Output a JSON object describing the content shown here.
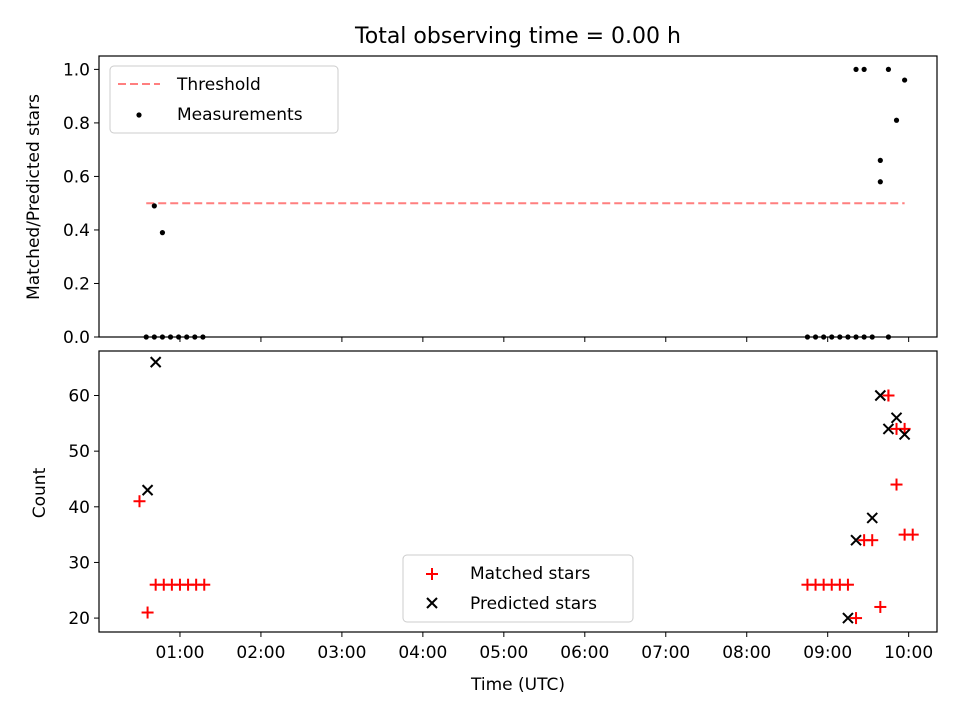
{
  "figure": {
    "title": "Total observing time = 0.00 h"
  },
  "chart_data": [
    {
      "type": "scatter",
      "ylabel": "Matched/Predicted stars",
      "ylim": [
        0,
        1.05
      ],
      "yticks": [
        "0.0",
        "0.2",
        "0.4",
        "0.6",
        "0.8",
        "1.0"
      ],
      "legend_position": "upper-left",
      "threshold": {
        "name": "Threshold",
        "value": 0.5,
        "x_range": [
          "00:35",
          "09:57"
        ],
        "color": "#ff7f7f"
      },
      "series": [
        {
          "name": "Measurements",
          "color": "#000000",
          "x": [
            "00:35",
            "00:41",
            "00:47",
            "00:53",
            "00:59",
            "01:05",
            "01:11",
            "01:17",
            "00:41",
            "00:47",
            "08:45",
            "08:51",
            "08:57",
            "09:03",
            "09:09",
            "09:15",
            "09:21",
            "09:21",
            "09:27",
            "09:27",
            "09:33",
            "09:39",
            "09:45",
            "09:45",
            "09:51",
            "09:57",
            "09:39"
          ],
          "y": [
            0.0,
            0.49,
            0.39,
            0.0,
            0.0,
            0.0,
            0.0,
            0.0,
            0.0,
            0.0,
            0.0,
            0.0,
            0.0,
            0.0,
            0.0,
            0.0,
            0.0,
            1.0,
            1.0,
            0.0,
            0.0,
            0.58,
            1.0,
            0.0,
            0.81,
            0.96,
            0.66
          ]
        }
      ]
    },
    {
      "type": "scatter",
      "xlabel": "Time (UTC)",
      "ylabel": "Count",
      "ylim": [
        17.5,
        68
      ],
      "yticks": [
        "20",
        "30",
        "40",
        "50",
        "60"
      ],
      "xticks": [
        "01:00",
        "02:00",
        "03:00",
        "04:00",
        "05:00",
        "06:00",
        "07:00",
        "08:00",
        "09:00",
        "10:00"
      ],
      "xlim": [
        "00:00",
        "10:21"
      ],
      "legend_position": "lower-center",
      "series": [
        {
          "name": "Matched stars",
          "marker": "plus",
          "color": "#ff0000",
          "x": [
            "00:30",
            "00:36",
            "00:42",
            "00:48",
            "00:54",
            "01:00",
            "01:06",
            "01:12",
            "01:18",
            "08:45",
            "08:51",
            "08:57",
            "09:03",
            "09:09",
            "09:15",
            "09:21",
            "09:27",
            "09:33",
            "09:39",
            "09:45",
            "09:51",
            "09:57",
            "09:57",
            "10:03",
            "09:51",
            "09:45"
          ],
          "y": [
            41,
            21,
            26,
            26,
            26,
            26,
            26,
            26,
            26,
            26,
            26,
            26,
            26,
            26,
            26,
            20,
            34,
            34,
            22,
            60,
            44,
            35,
            54,
            35,
            54,
            60
          ]
        },
        {
          "name": "Predicted stars",
          "marker": "x",
          "color": "#000000",
          "x": [
            "00:36",
            "00:42",
            "09:15",
            "09:21",
            "09:33",
            "09:39",
            "09:45",
            "09:51",
            "09:57"
          ],
          "y": [
            43,
            66,
            20,
            34,
            38,
            60,
            54,
            56,
            53
          ]
        }
      ]
    }
  ]
}
